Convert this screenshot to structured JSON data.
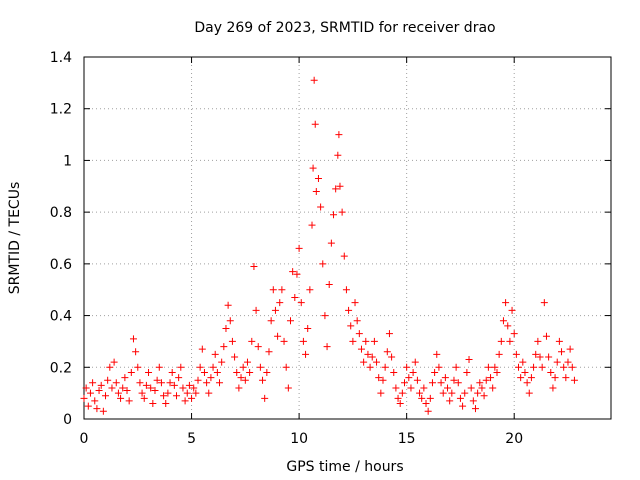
{
  "chart_data": {
    "type": "scatter",
    "title": "Day 269 of 2023, SRMTID for receiver drao",
    "xlabel": "GPS time / hours",
    "ylabel": "SRMTID / TECUs",
    "xlim": [
      0,
      24.5
    ],
    "ylim": [
      0,
      1.4
    ],
    "x_ticks": [
      0,
      5,
      10,
      15,
      20
    ],
    "x_tick_labels": [
      "0",
      "5",
      "10",
      "15",
      "20"
    ],
    "y_ticks": [
      0,
      0.2,
      0.4,
      0.6,
      0.8,
      1.0,
      1.2,
      1.4
    ],
    "y_tick_labels": [
      "0",
      "0.2",
      "0.4",
      "0.6",
      "0.8",
      "1",
      "1.2",
      "1.4"
    ],
    "grid": true,
    "marker": "+",
    "marker_color": "#ff0000",
    "series": [
      {
        "name": "SRMTID",
        "points": [
          [
            0.0,
            0.08
          ],
          [
            0.1,
            0.12
          ],
          [
            0.2,
            0.05
          ],
          [
            0.3,
            0.1
          ],
          [
            0.4,
            0.14
          ],
          [
            0.5,
            0.07
          ],
          [
            0.6,
            0.04
          ],
          [
            0.7,
            0.11
          ],
          [
            0.8,
            0.13
          ],
          [
            0.9,
            0.03
          ],
          [
            1.0,
            0.09
          ],
          [
            1.1,
            0.15
          ],
          [
            1.2,
            0.2
          ],
          [
            1.3,
            0.12
          ],
          [
            1.4,
            0.22
          ],
          [
            1.5,
            0.14
          ],
          [
            1.6,
            0.1
          ],
          [
            1.7,
            0.08
          ],
          [
            1.8,
            0.12
          ],
          [
            1.9,
            0.16
          ],
          [
            2.0,
            0.11
          ],
          [
            2.1,
            0.07
          ],
          [
            2.2,
            0.18
          ],
          [
            2.3,
            0.31
          ],
          [
            2.4,
            0.26
          ],
          [
            2.5,
            0.2
          ],
          [
            2.6,
            0.14
          ],
          [
            2.7,
            0.1
          ],
          [
            2.8,
            0.08
          ],
          [
            2.9,
            0.13
          ],
          [
            3.0,
            0.18
          ],
          [
            3.1,
            0.12
          ],
          [
            3.2,
            0.06
          ],
          [
            3.3,
            0.11
          ],
          [
            3.4,
            0.15
          ],
          [
            3.5,
            0.2
          ],
          [
            3.6,
            0.14
          ],
          [
            3.7,
            0.09
          ],
          [
            3.8,
            0.06
          ],
          [
            3.9,
            0.1
          ],
          [
            4.0,
            0.14
          ],
          [
            4.1,
            0.18
          ],
          [
            4.2,
            0.13
          ],
          [
            4.3,
            0.09
          ],
          [
            4.4,
            0.16
          ],
          [
            4.5,
            0.2
          ],
          [
            4.6,
            0.12
          ],
          [
            4.7,
            0.07
          ],
          [
            4.8,
            0.1
          ],
          [
            4.9,
            0.13
          ],
          [
            5.0,
            0.08
          ],
          [
            5.1,
            0.12
          ],
          [
            5.2,
            0.1
          ],
          [
            5.3,
            0.15
          ],
          [
            5.4,
            0.2
          ],
          [
            5.5,
            0.27
          ],
          [
            5.6,
            0.18
          ],
          [
            5.7,
            0.14
          ],
          [
            5.8,
            0.1
          ],
          [
            5.9,
            0.16
          ],
          [
            6.0,
            0.2
          ],
          [
            6.1,
            0.25
          ],
          [
            6.2,
            0.18
          ],
          [
            6.3,
            0.14
          ],
          [
            6.4,
            0.22
          ],
          [
            6.5,
            0.28
          ],
          [
            6.6,
            0.35
          ],
          [
            6.7,
            0.44
          ],
          [
            6.8,
            0.38
          ],
          [
            6.9,
            0.3
          ],
          [
            7.0,
            0.24
          ],
          [
            7.1,
            0.18
          ],
          [
            7.2,
            0.12
          ],
          [
            7.3,
            0.16
          ],
          [
            7.4,
            0.2
          ],
          [
            7.5,
            0.15
          ],
          [
            7.6,
            0.22
          ],
          [
            7.7,
            0.18
          ],
          [
            7.8,
            0.3
          ],
          [
            7.9,
            0.59
          ],
          [
            8.0,
            0.42
          ],
          [
            8.1,
            0.28
          ],
          [
            8.2,
            0.2
          ],
          [
            8.3,
            0.15
          ],
          [
            8.4,
            0.08
          ],
          [
            8.5,
            0.18
          ],
          [
            8.6,
            0.26
          ],
          [
            8.7,
            0.38
          ],
          [
            8.8,
            0.5
          ],
          [
            8.9,
            0.42
          ],
          [
            9.0,
            0.32
          ],
          [
            9.1,
            0.45
          ],
          [
            9.2,
            0.5
          ],
          [
            9.3,
            0.3
          ],
          [
            9.4,
            0.2
          ],
          [
            9.5,
            0.12
          ],
          [
            9.6,
            0.38
          ],
          [
            9.7,
            0.57
          ],
          [
            9.8,
            0.47
          ],
          [
            9.9,
            0.56
          ],
          [
            10.0,
            0.66
          ],
          [
            10.1,
            0.45
          ],
          [
            10.2,
            0.3
          ],
          [
            10.3,
            0.25
          ],
          [
            10.4,
            0.35
          ],
          [
            10.5,
            0.5
          ],
          [
            10.6,
            0.75
          ],
          [
            10.65,
            0.97
          ],
          [
            10.7,
            1.31
          ],
          [
            10.75,
            1.14
          ],
          [
            10.8,
            0.88
          ],
          [
            10.9,
            0.93
          ],
          [
            11.0,
            0.82
          ],
          [
            11.1,
            0.6
          ],
          [
            11.2,
            0.4
          ],
          [
            11.3,
            0.28
          ],
          [
            11.4,
            0.52
          ],
          [
            11.5,
            0.68
          ],
          [
            11.6,
            0.79
          ],
          [
            11.7,
            0.89
          ],
          [
            11.8,
            1.02
          ],
          [
            11.85,
            1.1
          ],
          [
            11.9,
            0.9
          ],
          [
            12.0,
            0.8
          ],
          [
            12.1,
            0.63
          ],
          [
            12.2,
            0.5
          ],
          [
            12.3,
            0.42
          ],
          [
            12.4,
            0.36
          ],
          [
            12.5,
            0.3
          ],
          [
            12.6,
            0.45
          ],
          [
            12.7,
            0.38
          ],
          [
            12.8,
            0.33
          ],
          [
            12.9,
            0.27
          ],
          [
            13.0,
            0.22
          ],
          [
            13.1,
            0.3
          ],
          [
            13.2,
            0.25
          ],
          [
            13.3,
            0.2
          ],
          [
            13.4,
            0.24
          ],
          [
            13.5,
            0.3
          ],
          [
            13.6,
            0.22
          ],
          [
            13.7,
            0.16
          ],
          [
            13.8,
            0.1
          ],
          [
            13.9,
            0.15
          ],
          [
            14.0,
            0.2
          ],
          [
            14.1,
            0.26
          ],
          [
            14.2,
            0.33
          ],
          [
            14.3,
            0.24
          ],
          [
            14.4,
            0.18
          ],
          [
            14.5,
            0.12
          ],
          [
            14.6,
            0.08
          ],
          [
            14.7,
            0.06
          ],
          [
            14.8,
            0.1
          ],
          [
            14.9,
            0.14
          ],
          [
            15.0,
            0.2
          ],
          [
            15.1,
            0.16
          ],
          [
            15.2,
            0.12
          ],
          [
            15.3,
            0.18
          ],
          [
            15.4,
            0.22
          ],
          [
            15.5,
            0.15
          ],
          [
            15.6,
            0.1
          ],
          [
            15.7,
            0.08
          ],
          [
            15.8,
            0.12
          ],
          [
            15.9,
            0.06
          ],
          [
            16.0,
            0.03
          ],
          [
            16.1,
            0.08
          ],
          [
            16.2,
            0.14
          ],
          [
            16.3,
            0.18
          ],
          [
            16.4,
            0.25
          ],
          [
            16.5,
            0.2
          ],
          [
            16.6,
            0.14
          ],
          [
            16.7,
            0.1
          ],
          [
            16.8,
            0.16
          ],
          [
            16.9,
            0.12
          ],
          [
            17.0,
            0.07
          ],
          [
            17.1,
            0.1
          ],
          [
            17.2,
            0.15
          ],
          [
            17.3,
            0.2
          ],
          [
            17.4,
            0.14
          ],
          [
            17.5,
            0.08
          ],
          [
            17.6,
            0.05
          ],
          [
            17.7,
            0.1
          ],
          [
            17.8,
            0.18
          ],
          [
            17.9,
            0.23
          ],
          [
            18.0,
            0.12
          ],
          [
            18.1,
            0.07
          ],
          [
            18.2,
            0.04
          ],
          [
            18.3,
            0.1
          ],
          [
            18.4,
            0.14
          ],
          [
            18.5,
            0.12
          ],
          [
            18.6,
            0.09
          ],
          [
            18.7,
            0.15
          ],
          [
            18.8,
            0.2
          ],
          [
            18.9,
            0.16
          ],
          [
            19.0,
            0.12
          ],
          [
            19.1,
            0.2
          ],
          [
            19.2,
            0.18
          ],
          [
            19.3,
            0.25
          ],
          [
            19.4,
            0.3
          ],
          [
            19.5,
            0.38
          ],
          [
            19.6,
            0.45
          ],
          [
            19.7,
            0.36
          ],
          [
            19.8,
            0.3
          ],
          [
            19.9,
            0.42
          ],
          [
            20.0,
            0.33
          ],
          [
            20.1,
            0.25
          ],
          [
            20.2,
            0.2
          ],
          [
            20.3,
            0.16
          ],
          [
            20.4,
            0.22
          ],
          [
            20.5,
            0.18
          ],
          [
            20.6,
            0.14
          ],
          [
            20.7,
            0.1
          ],
          [
            20.8,
            0.16
          ],
          [
            20.9,
            0.2
          ],
          [
            21.0,
            0.25
          ],
          [
            21.1,
            0.3
          ],
          [
            21.2,
            0.24
          ],
          [
            21.3,
            0.2
          ],
          [
            21.4,
            0.45
          ],
          [
            21.5,
            0.32
          ],
          [
            21.6,
            0.24
          ],
          [
            21.7,
            0.18
          ],
          [
            21.8,
            0.12
          ],
          [
            21.9,
            0.16
          ],
          [
            22.0,
            0.22
          ],
          [
            22.1,
            0.3
          ],
          [
            22.2,
            0.26
          ],
          [
            22.3,
            0.2
          ],
          [
            22.4,
            0.16
          ],
          [
            22.5,
            0.22
          ],
          [
            22.6,
            0.27
          ],
          [
            22.7,
            0.2
          ],
          [
            22.8,
            0.15
          ]
        ]
      }
    ]
  }
}
